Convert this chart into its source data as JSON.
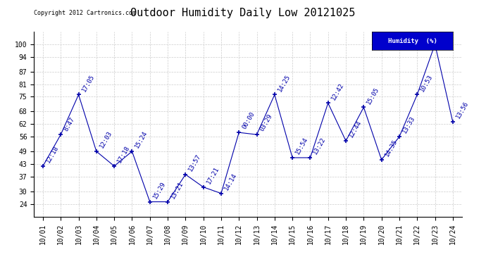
{
  "title": "Outdoor Humidity Daily Low 20121025",
  "copyright": "Copyright 2012 Cartronics.com",
  "legend_label": "Humidity  (%)",
  "x_labels": [
    "10/01",
    "10/02",
    "10/03",
    "10/04",
    "10/05",
    "10/06",
    "10/07",
    "10/08",
    "10/09",
    "10/10",
    "10/11",
    "10/12",
    "10/13",
    "10/14",
    "10/15",
    "10/16",
    "10/17",
    "10/18",
    "10/19",
    "10/20",
    "10/21",
    "10/22",
    "10/23",
    "10/24"
  ],
  "y_values": [
    42,
    57,
    76,
    49,
    42,
    49,
    25,
    25,
    38,
    32,
    29,
    58,
    57,
    76,
    46,
    46,
    72,
    54,
    70,
    45,
    56,
    76,
    100,
    63
  ],
  "point_labels": [
    "12:18",
    "8:47",
    "17:05",
    "12:03",
    "17:18",
    "15:24",
    "15:29",
    "13:21",
    "13:57",
    "17:21",
    "14:14",
    "00:00",
    "03:29",
    "14:25",
    "15:54",
    "13:22",
    "12:42",
    "12:44",
    "15:05",
    "14:35",
    "13:33",
    "10:53",
    "",
    "13:56"
  ],
  "ylim": [
    18,
    106
  ],
  "yticks": [
    24,
    30,
    37,
    43,
    49,
    56,
    62,
    68,
    75,
    81,
    87,
    94,
    100
  ],
  "line_color": "#0000aa",
  "marker_color": "#0000aa",
  "background_color": "#ffffff",
  "grid_color": "#cccccc",
  "title_fontsize": 11,
  "label_fontsize": 7,
  "annotation_fontsize": 6.5
}
